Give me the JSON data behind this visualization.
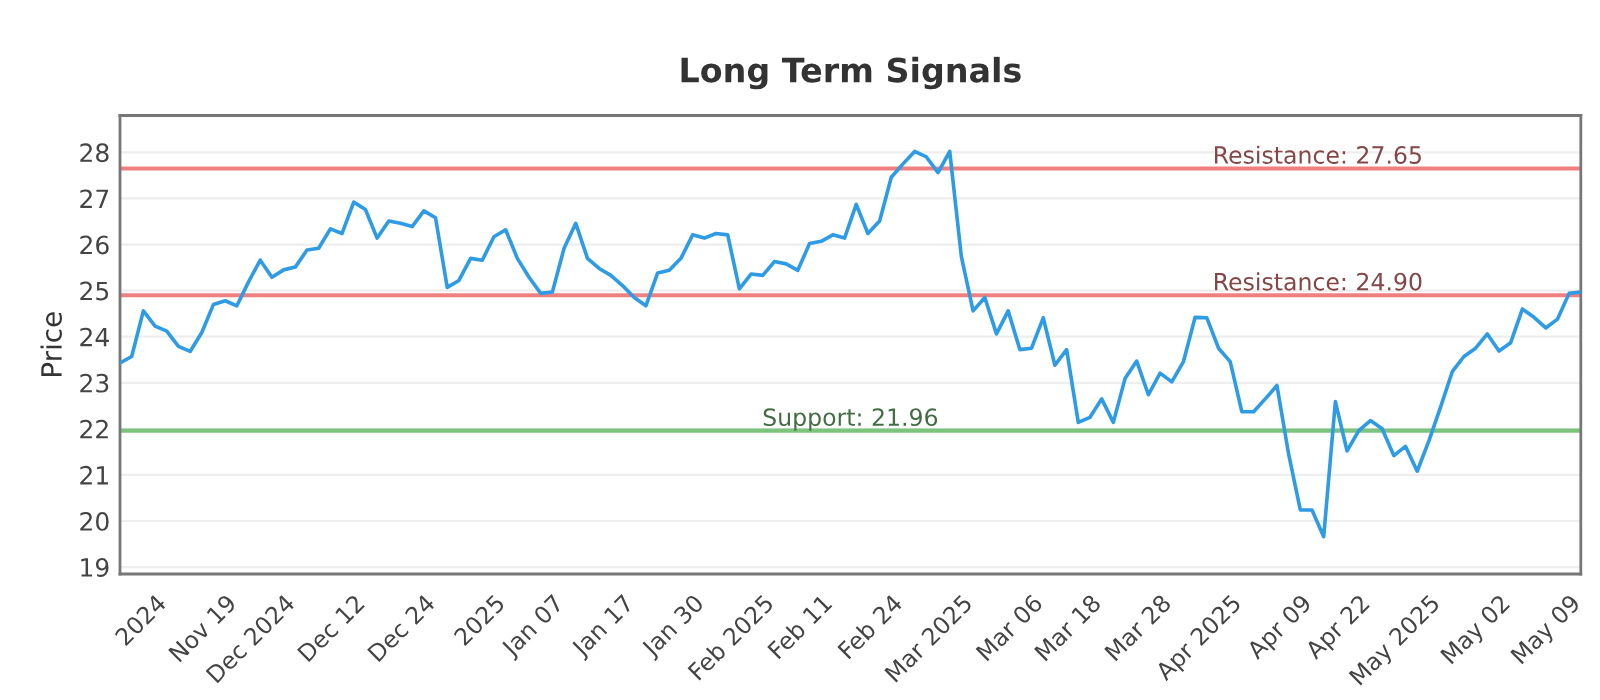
{
  "chart_data": {
    "type": "line",
    "title": "Long Term Signals",
    "ylabel": "Price",
    "categories": [
      null,
      null,
      null,
      "2024",
      null,
      null,
      null,
      null,
      null,
      "Nov 19",
      null,
      null,
      null,
      null,
      "Dec 2024",
      null,
      null,
      null,
      null,
      null,
      "Dec 12",
      null,
      null,
      null,
      null,
      null,
      "Dec 24",
      null,
      null,
      null,
      null,
      null,
      "2025",
      null,
      null,
      null,
      null,
      "Jan 07",
      null,
      null,
      null,
      null,
      null,
      "Jan 17",
      null,
      null,
      null,
      null,
      null,
      "Jan 30",
      null,
      null,
      null,
      null,
      null,
      "Feb 2025",
      null,
      null,
      null,
      null,
      "Feb 11",
      null,
      null,
      null,
      null,
      null,
      "Feb 24",
      null,
      null,
      null,
      null,
      null,
      "Mar 2025",
      null,
      null,
      null,
      null,
      null,
      "Mar 06",
      null,
      null,
      null,
      null,
      "Mar 18",
      null,
      null,
      null,
      null,
      null,
      "Mar 28",
      null,
      null,
      null,
      null,
      null,
      "Apr 2025",
      null,
      null,
      null,
      null,
      null,
      "Apr 09",
      null,
      null,
      null,
      null,
      "Apr 22",
      null,
      null,
      null,
      null,
      null,
      "May 2025",
      null,
      null,
      null,
      null,
      null,
      "May 02",
      null,
      null,
      null,
      null,
      null,
      "May 09",
      null
    ],
    "series": [
      {
        "color": "#2e9be6",
        "values": [
          23.43,
          23.57,
          24.56,
          24.23,
          24.12,
          23.79,
          23.68,
          24.09,
          24.7,
          24.78,
          24.67,
          25.19,
          25.66,
          25.29,
          25.45,
          25.51,
          25.88,
          25.92,
          26.34,
          26.24,
          26.92,
          26.76,
          26.14,
          26.51,
          26.46,
          26.39,
          26.73,
          26.58,
          25.07,
          25.22,
          25.7,
          25.66,
          26.17,
          26.32,
          25.7,
          25.29,
          24.94,
          24.97,
          25.92,
          26.46,
          25.7,
          25.48,
          25.33,
          25.11,
          24.85,
          24.67,
          25.38,
          25.44,
          25.7,
          26.21,
          26.14,
          26.24,
          26.21,
          25.04,
          25.36,
          25.33,
          25.63,
          25.58,
          25.44,
          26.02,
          26.07,
          26.21,
          26.14,
          26.87,
          26.24,
          26.51,
          27.46,
          27.75,
          28.02,
          27.9,
          27.56,
          28.02,
          25.73,
          24.56,
          24.85,
          24.06,
          24.56,
          23.72,
          23.75,
          24.41,
          23.38,
          23.72,
          22.14,
          22.25,
          22.65,
          22.14,
          23.09,
          23.47,
          22.74,
          23.21,
          23.02,
          23.46,
          24.42,
          24.41,
          23.75,
          23.46,
          22.37,
          22.37,
          22.65,
          22.94,
          21.45,
          20.24,
          20.24,
          19.66,
          22.59,
          21.52,
          21.96,
          22.18,
          22.0,
          21.42,
          21.62,
          21.08,
          21.74,
          22.47,
          23.24,
          23.57,
          23.75,
          24.06,
          23.69,
          23.87,
          24.6,
          24.42,
          24.19,
          24.38,
          24.94,
          24.97
        ]
      }
    ],
    "ylim": [
      18.85,
      28.8
    ],
    "yticks": [
      19,
      20,
      21,
      22,
      23,
      24,
      25,
      26,
      27,
      28
    ],
    "grid": "y",
    "ref_lines": [
      {
        "axis": "y",
        "value": 27.65,
        "label": "Resistance: 27.65",
        "color": "#f08080"
      },
      {
        "axis": "y",
        "value": 24.9,
        "label": "Resistance: 24.90",
        "color": "#f08080"
      },
      {
        "axis": "y",
        "value": 21.96,
        "label": "Support: 21.96",
        "color": "#7cc47c"
      }
    ]
  }
}
